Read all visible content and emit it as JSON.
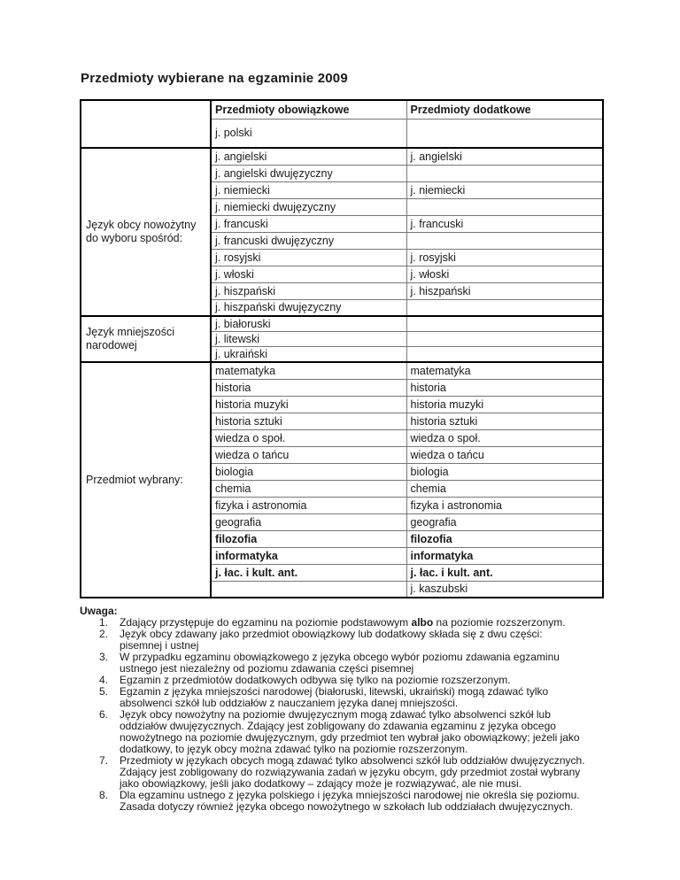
{
  "title": "Przedmioty wybierane na egzaminie 2009",
  "colors": {
    "background": "#ffffff",
    "text": "#1a1a1a",
    "border_strong": "#000000",
    "border_light": "#777777"
  },
  "table": {
    "header": {
      "obowiazkowe": "Przedmioty obowiązkowe",
      "dodatkowe": "Przedmioty dodatkowe"
    },
    "sections": [
      {
        "label": "",
        "rows": [
          {
            "c2": "j. polski",
            "c3": ""
          }
        ]
      },
      {
        "label": "Język obcy nowożytny do wyboru spośród:",
        "rows": [
          {
            "c2": "j. angielski",
            "c3": "j. angielski"
          },
          {
            "c2": "j. angielski dwujęzyczny",
            "c3": ""
          },
          {
            "c2": "j. niemiecki",
            "c3": "j. niemiecki"
          },
          {
            "c2": "j. niemiecki dwujęzyczny",
            "c3": ""
          },
          {
            "c2": "j. francuski",
            "c3": "j. francuski"
          },
          {
            "c2": "j. francuski dwujęzyczny",
            "c3": ""
          },
          {
            "c2": "j. rosyjski",
            "c3": "j. rosyjski"
          },
          {
            "c2": "j. włoski",
            "c3": "j. włoski"
          },
          {
            "c2": "j. hiszpański",
            "c3": "j. hiszpański"
          },
          {
            "c2": "j. hiszpański dwujęzyczny",
            "c3": ""
          }
        ]
      },
      {
        "label": "Język mniejszości narodowej",
        "rows": [
          {
            "c2": "j. białoruski",
            "c3": ""
          },
          {
            "c2": "j. litewski",
            "c3": ""
          },
          {
            "c2": "j. ukraiński",
            "c3": ""
          }
        ]
      },
      {
        "label": "Przedmiot wybrany:",
        "rows": [
          {
            "c2": "matematyka",
            "c3": "matematyka"
          },
          {
            "c2": "historia",
            "c3": "historia"
          },
          {
            "c2": "historia muzyki",
            "c3": "historia muzyki"
          },
          {
            "c2": "historia sztuki",
            "c3": "historia sztuki"
          },
          {
            "c2": "wiedza o społ.",
            "c3": "wiedza o społ."
          },
          {
            "c2": "wiedza o tańcu",
            "c3": "wiedza o tańcu"
          },
          {
            "c2": "biologia",
            "c3": "biologia"
          },
          {
            "c2": "chemia",
            "c3": "chemia"
          },
          {
            "c2": "fizyka i astronomia",
            "c3": "fizyka i astronomia"
          },
          {
            "c2": "geografia",
            "c3": "geografia"
          },
          {
            "c2": "filozofia",
            "c3": "filozofia",
            "bold": true
          },
          {
            "c2": "informatyka",
            "c3": "informatyka",
            "bold": true
          },
          {
            "c2": "j. łac. i kult. ant.",
            "c3": "j. łac. i kult. ant.",
            "bold": true
          },
          {
            "c2": "",
            "c3": "j. kaszubski"
          }
        ]
      }
    ]
  },
  "notes": {
    "heading": "Uwaga:",
    "items": [
      {
        "num": "1.",
        "segments": [
          {
            "t": "Zdający przystępuje do egzaminu na poziomie podstawowym "
          },
          {
            "t": "albo",
            "b": true
          },
          {
            "t": " na poziomie rozszerzonym."
          }
        ]
      },
      {
        "num": "2.",
        "segments": [
          {
            "t": "Język obcy zdawany jako przedmiot obowiązkowy lub dodatkowy składa się z dwu części: pisemnej i ustnej"
          }
        ]
      },
      {
        "num": "3.",
        "segments": [
          {
            "t": "W przypadku egzaminu obowiązkowego z języka obcego wybór poziomu zdawania egzaminu ustnego jest niezależny od poziomu zdawania części pisemnej"
          }
        ]
      },
      {
        "num": "4.",
        "segments": [
          {
            "t": "Egzamin z przedmiotów dodatkowych odbywa się tylko na poziomie rozszerzonym."
          }
        ]
      },
      {
        "num": "5.",
        "segments": [
          {
            "t": "Egzamin z języka mniejszości narodowej (białoruski, litewski, ukraiński) mogą zdawać tylko absolwenci szkół lub oddziałów z nauczaniem języka danej mniejszości."
          }
        ]
      },
      {
        "num": "6.",
        "segments": [
          {
            "t": "Język obcy nowożytny na poziomie dwujęzycznym mogą zdawać tylko absolwenci szkół lub oddziałów dwujęzycznych. Zdający jest zobligowany do zdawania egzaminu z języka obcego nowożytnego na poziomie dwujęzycznym, gdy przedmiot ten wybrał jako obowiązkowy; jeżeli jako dodatkowy, to język obcy można zdawać tylko na poziomie rozszerzonym."
          }
        ]
      },
      {
        "num": "7.",
        "segments": [
          {
            "t": "Przedmioty w językach obcych mogą zdawać tylko absolwenci szkół lub oddziałów dwujęzycznych. Zdający jest zobligowany do rozwiązywania zadań w języku obcym, gdy przedmiot został wybrany jako obowiązkowy, jeśli jako dodatkowy – zdający może je rozwiązywać, ale nie musi."
          }
        ]
      },
      {
        "num": "8.",
        "segments": [
          {
            "t": "Dla egzaminu ustnego z języka polskiego i języka mniejszości narodowej nie określa się poziomu. Zasada dotyczy również języka obcego nowożytnego w szkołach lub oddziałach dwujęzycznych."
          }
        ]
      }
    ]
  }
}
